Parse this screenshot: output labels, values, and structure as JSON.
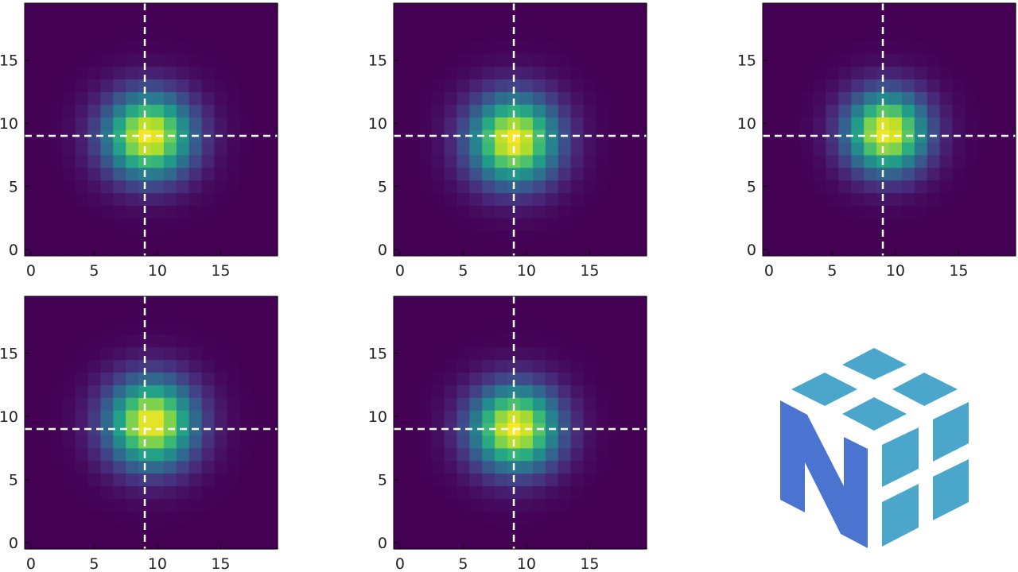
{
  "colors": {
    "colormap": "viridis",
    "crosshair": "#ffffff",
    "logo_dark": "#4a74cf",
    "logo_light": "#4ba6cc",
    "background": "#ffffff"
  },
  "logo": {
    "icon": "numpy-logo-icon"
  },
  "chart_data": [
    {
      "type": "heatmap",
      "grid_size": 20,
      "xticks": [
        "0",
        "5",
        "10",
        "15"
      ],
      "yticks": [
        "0",
        "5",
        "10",
        "15"
      ],
      "xlim": [
        -0.5,
        19.5
      ],
      "ylim": [
        -0.5,
        19.5
      ],
      "center": [
        9.3,
        9.0
      ],
      "sigma": [
        2.4,
        2.3
      ],
      "crosshair": [
        9,
        9
      ],
      "colorscale": [
        0,
        1
      ]
    },
    {
      "type": "heatmap",
      "grid_size": 20,
      "xticks": [
        "0",
        "5",
        "10",
        "15"
      ],
      "yticks": [
        "0",
        "5",
        "10",
        "15"
      ],
      "xlim": [
        -0.5,
        19.5
      ],
      "ylim": [
        -0.5,
        19.5
      ],
      "center": [
        9.0,
        8.7
      ],
      "sigma": [
        2.4,
        2.4
      ],
      "crosshair": [
        9,
        9
      ],
      "colorscale": [
        0,
        1
      ]
    },
    {
      "type": "heatmap",
      "grid_size": 20,
      "xticks": [
        "0",
        "5",
        "10",
        "15"
      ],
      "yticks": [
        "0",
        "5",
        "10",
        "15"
      ],
      "xlim": [
        -0.5,
        19.5
      ],
      "ylim": [
        -0.5,
        19.5
      ],
      "center": [
        9.3,
        9.3
      ],
      "sigma": [
        2.2,
        2.2
      ],
      "crosshair": [
        9,
        9
      ],
      "colorscale": [
        0,
        1
      ]
    },
    {
      "type": "heatmap",
      "grid_size": 20,
      "xticks": [
        "0",
        "5",
        "10",
        "15"
      ],
      "yticks": [
        "0",
        "5",
        "10",
        "15"
      ],
      "xlim": [
        -0.5,
        19.5
      ],
      "ylim": [
        -0.5,
        19.5
      ],
      "center": [
        9.5,
        9.5
      ],
      "sigma": [
        2.4,
        2.4
      ],
      "crosshair": [
        9,
        9
      ],
      "colorscale": [
        0,
        1
      ]
    },
    {
      "type": "heatmap",
      "grid_size": 20,
      "xticks": [
        "0",
        "5",
        "10",
        "15"
      ],
      "yticks": [
        "0",
        "5",
        "10",
        "15"
      ],
      "xlim": [
        -0.5,
        19.5
      ],
      "ylim": [
        -0.5,
        19.5
      ],
      "center": [
        9.1,
        9.1
      ],
      "sigma": [
        2.4,
        2.3
      ],
      "crosshair": [
        9,
        9
      ],
      "colorscale": [
        0,
        1
      ]
    }
  ]
}
